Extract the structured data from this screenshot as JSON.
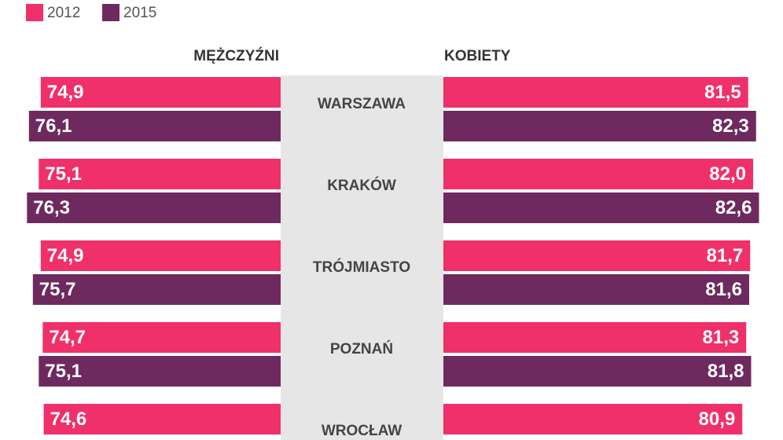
{
  "chart_data": {
    "type": "butterfly-bar",
    "left_title": "MĘŻCZYŹNI",
    "right_title": "KOBIETY",
    "categories": [
      "WARSZAWA",
      "KRAKÓW",
      "TRÓJMIASTO",
      "POZNAŃ",
      "WROCŁAW"
    ],
    "xlim": [
      50.5,
      82.8
    ],
    "series": [
      {
        "name": "2012",
        "color": "#f0306a",
        "left_values": [
          74.9,
          75.1,
          74.9,
          74.7,
          74.6
        ],
        "left_value_labels": [
          "74,9",
          "75,1",
          "74,9",
          "74,7",
          "74,6"
        ],
        "right_values": [
          81.5,
          82.0,
          81.7,
          81.3,
          80.9
        ],
        "right_value_labels": [
          "81,5",
          "82,0",
          "81,7",
          "81,3",
          "80,9"
        ]
      },
      {
        "name": "2015",
        "color": "#6e2a5e",
        "left_values": [
          76.1,
          76.3,
          75.7,
          75.1,
          null
        ],
        "left_value_labels": [
          "76,1",
          "76,3",
          "75,7",
          "75,1",
          null
        ],
        "right_values": [
          82.3,
          82.6,
          81.6,
          81.8,
          null
        ],
        "right_value_labels": [
          "82,3",
          "82,6",
          "81,6",
          "81,8",
          null
        ]
      }
    ]
  }
}
